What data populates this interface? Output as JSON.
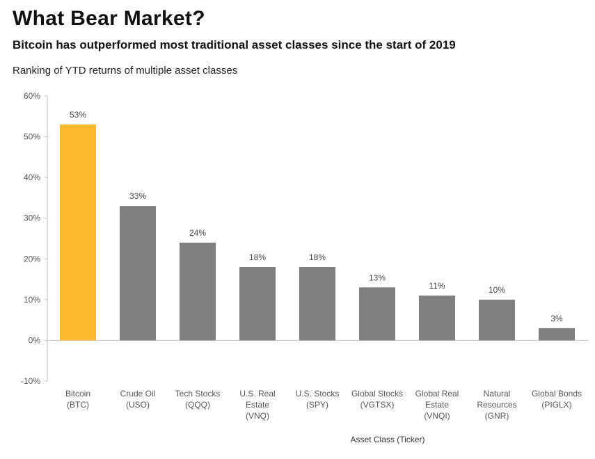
{
  "title": "What Bear Market?",
  "subtitle": "Bitcoin has outperformed most traditional asset classes since the start of 2019",
  "chart_data": {
    "type": "bar",
    "title": "Ranking of YTD returns of multiple asset classes",
    "xlabel": "Asset Class (Ticker)",
    "ylabel": "",
    "ylim": [
      -10,
      60
    ],
    "yticks": [
      -10,
      0,
      10,
      20,
      30,
      40,
      50,
      60
    ],
    "ytick_labels": [
      "-10%",
      "0%",
      "10%",
      "20%",
      "30%",
      "40%",
      "50%",
      "60%"
    ],
    "categories": [
      [
        "Bitcoin",
        "(BTC)"
      ],
      [
        "Crude Oil",
        "(USO)"
      ],
      [
        "Tech Stocks",
        "(QQQ)"
      ],
      [
        "U.S. Real",
        "Estate",
        "(VNQ)"
      ],
      [
        "U.S. Stocks",
        "(SPY)"
      ],
      [
        "Global Stocks",
        "(VGTSX)"
      ],
      [
        "Global Real",
        "Estate",
        "(VNQI)"
      ],
      [
        "Natural",
        "Resources",
        "(GNR)"
      ],
      [
        "Global Bonds",
        "(PIGLX)"
      ]
    ],
    "values": [
      53,
      33,
      24,
      18,
      18,
      13,
      11,
      10,
      3
    ],
    "value_labels": [
      "53%",
      "33%",
      "24%",
      "18%",
      "18%",
      "13%",
      "11%",
      "10%",
      "3%"
    ],
    "colors": [
      "#FDBA31",
      "#7F7F7F",
      "#7F7F7F",
      "#7F7F7F",
      "#7F7F7F",
      "#7F7F7F",
      "#7F7F7F",
      "#7F7F7F",
      "#7F7F7F"
    ],
    "grid": false,
    "legend": "none"
  }
}
